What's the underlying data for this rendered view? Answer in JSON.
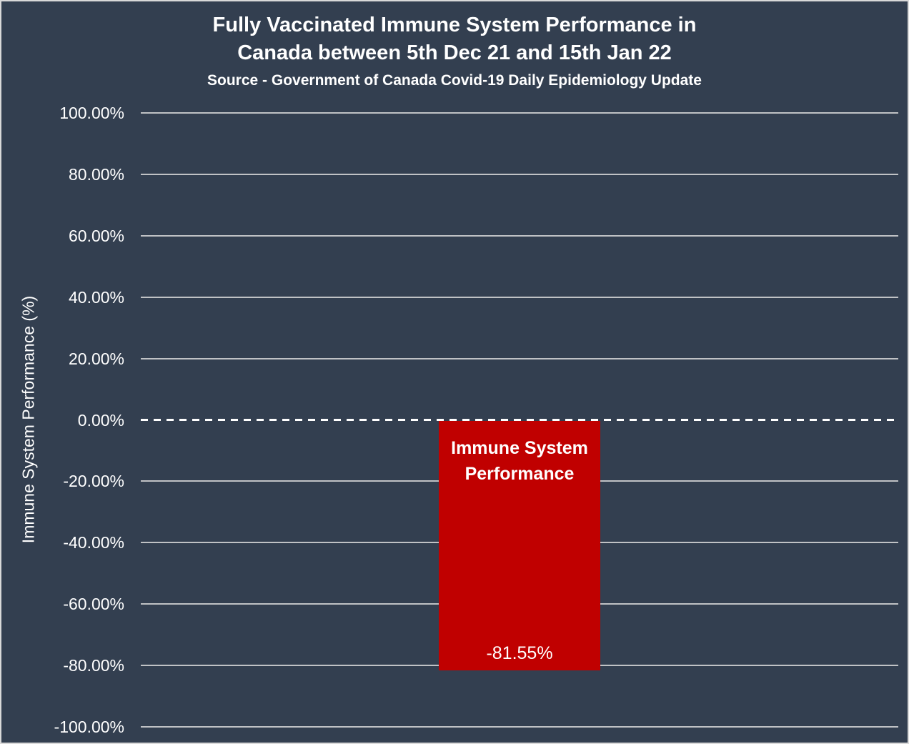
{
  "chart_data": {
    "type": "bar",
    "title_line1": "Fully Vaccinated Immune System Performance in",
    "title_line2": "Canada between 5th Dec 21 and 15th Jan 22",
    "subtitle": "Source - Government of Canada Covid-19 Daily Epidemiology Update",
    "ylabel": "Immune System Performance (%)",
    "xlabel": "",
    "categories": [
      "Immune System Performance"
    ],
    "values": [
      -81.55
    ],
    "value_labels": [
      "-81.55%"
    ],
    "bar_label_lines": [
      "Immune System",
      "Performance"
    ],
    "ylim": [
      -100,
      100
    ],
    "ytick_step": 20,
    "yticks": [
      {
        "value": 100,
        "label": "100.00%"
      },
      {
        "value": 80,
        "label": "80.00%"
      },
      {
        "value": 60,
        "label": "60.00%"
      },
      {
        "value": 40,
        "label": "40.00%"
      },
      {
        "value": 20,
        "label": "20.00%"
      },
      {
        "value": 0,
        "label": "0.00%"
      },
      {
        "value": -20,
        "label": "-20.00%"
      },
      {
        "value": -40,
        "label": "-40.00%"
      },
      {
        "value": -60,
        "label": "-60.00%"
      },
      {
        "value": -80,
        "label": "-80.00%"
      },
      {
        "value": -100,
        "label": "-100.00%"
      }
    ],
    "grid": true,
    "zero_line_style": "dashed",
    "legend": false,
    "colors": {
      "background": "#333F50",
      "bar": "#C00000",
      "gridline": "#D9D9D9",
      "zero_line": "#FFFFFF",
      "text": "#FFFFFF",
      "border": "#D9D9D9"
    }
  }
}
